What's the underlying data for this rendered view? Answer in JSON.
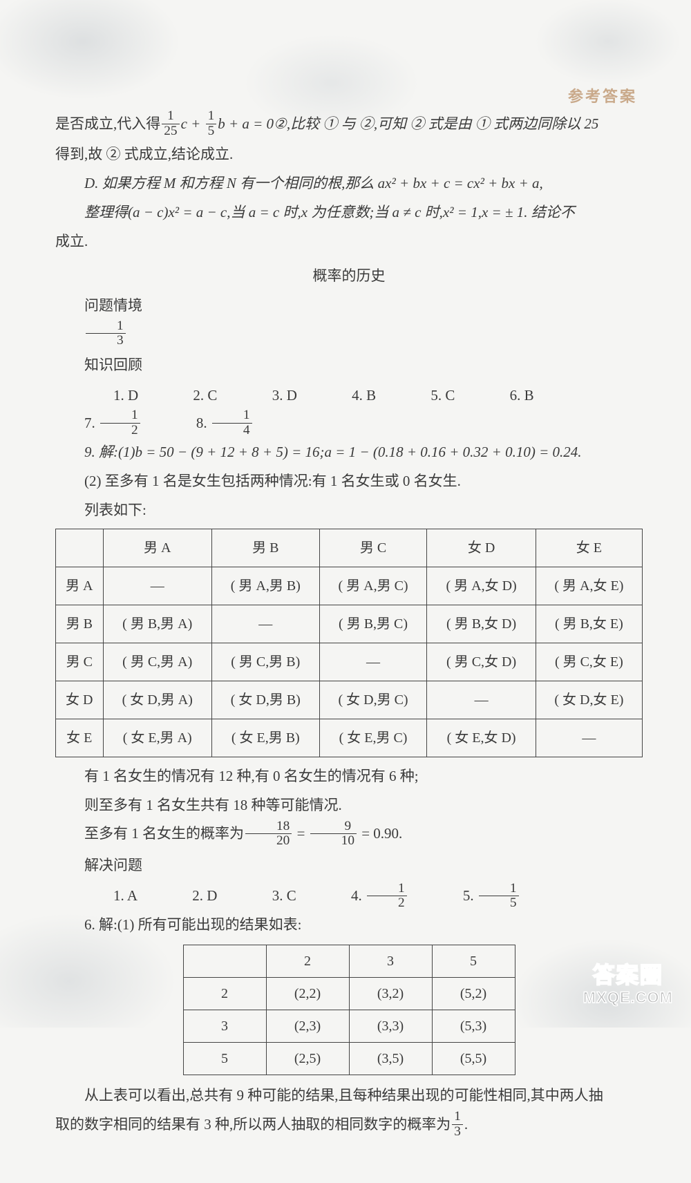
{
  "header": {
    "label": "参考答案"
  },
  "block1": {
    "l1a": "是否成立,代入得",
    "f1n": "1",
    "f1d": "25",
    "mid1": "c + ",
    "f2n": "1",
    "f2d": "5",
    "l1b": "b + a = 0②,比较 ① 与 ②,可知 ② 式是由 ① 式两边同除以 25",
    "l2": "得到,故 ② 式成立,结论成立.",
    "l3": "D. 如果方程 M 和方程 N 有一个相同的根,那么 ax² + bx + c = cx² + bx + a,",
    "l4": "整理得(a − c)x² = a − c,当 a = c 时,x 为任意数;当 a ≠ c 时,x² = 1,x = ± 1. 结论不",
    "l5": "成立."
  },
  "sec1": {
    "title": "概率的历史",
    "sub1": "问题情境",
    "f_n": "1",
    "f_d": "3",
    "sub2": "知识回顾",
    "answers": [
      "1. D",
      "2. C",
      "3. D",
      "4. B",
      "5. C",
      "6. B"
    ],
    "a7": "7. ",
    "a7n": "1",
    "a7d": "2",
    "a8": "8. ",
    "a8n": "1",
    "a8d": "4",
    "l9a": "9. 解:(1)b = 50 − (9 + 12 + 8 + 5) = 16;a = 1 − (0.18 + 0.16 + 0.32 + 0.10) = 0.24.",
    "l9b": "(2) 至多有 1 名是女生包括两种情况:有 1 名女生或 0 名女生.",
    "l9c": "列表如下:"
  },
  "table1": {
    "headers": [
      "",
      "男 A",
      "男 B",
      "男 C",
      "女 D",
      "女 E"
    ],
    "rowlabels": [
      "男 A",
      "男 B",
      "男 C",
      "女 D",
      "女 E"
    ],
    "rows": [
      [
        "—",
        "( 男 A,男 B)",
        "( 男 A,男 C)",
        "( 男 A,女 D)",
        "( 男 A,女 E)"
      ],
      [
        "( 男 B,男 A)",
        "—",
        "( 男 B,男 C)",
        "( 男 B,女 D)",
        "( 男 B,女 E)"
      ],
      [
        "( 男 C,男 A)",
        "( 男 C,男 B)",
        "—",
        "( 男 C,女 D)",
        "( 男 C,女 E)"
      ],
      [
        "( 女 D,男 A)",
        "( 女 D,男 B)",
        "( 女 D,男 C)",
        "—",
        "( 女 D,女 E)"
      ],
      [
        "( 女 E,男 A)",
        "( 女 E,男 B)",
        "( 女 E,男 C)",
        "( 女 E,女 D)",
        "—"
      ]
    ]
  },
  "after1": {
    "l1": "有 1 名女生的情况有 12 种,有 0 名女生的情况有 6 种;",
    "l2": "则至多有 1 名女生共有 18 种等可能情况.",
    "l3a": "至多有 1 名女生的概率为",
    "f1n": "18",
    "f1d": "20",
    "eq": " = ",
    "f2n": "9",
    "f2d": "10",
    "l3b": " = 0.90."
  },
  "sec2": {
    "sub": "解决问题",
    "answers": [
      "1. A",
      "2. D",
      "3. C"
    ],
    "a4": "4. ",
    "a4n": "1",
    "a4d": "2",
    "a5": "5. ",
    "a5n": "1",
    "a5d": "5",
    "l6": "6. 解:(1) 所有可能出现的结果如表:"
  },
  "table2": {
    "headers": [
      "",
      "2",
      "3",
      "5"
    ],
    "rows": [
      [
        "2",
        "(2,2)",
        "(3,2)",
        "(5,2)"
      ],
      [
        "3",
        "(2,3)",
        "(3,3)",
        "(5,3)"
      ],
      [
        "5",
        "(2,5)",
        "(3,5)",
        "(5,5)"
      ]
    ]
  },
  "after2": {
    "l1": "从上表可以看出,总共有 9 种可能的结果,且每种结果出现的可能性相同,其中两人抽",
    "l2a": "取的数字相同的结果有 3 种,所以两人抽取的相同数字的概率为",
    "fn": "1",
    "fd": "3",
    "l2b": "."
  },
  "watermark": {
    "l1": "答案圈",
    "l2": "MXQE.COM"
  }
}
